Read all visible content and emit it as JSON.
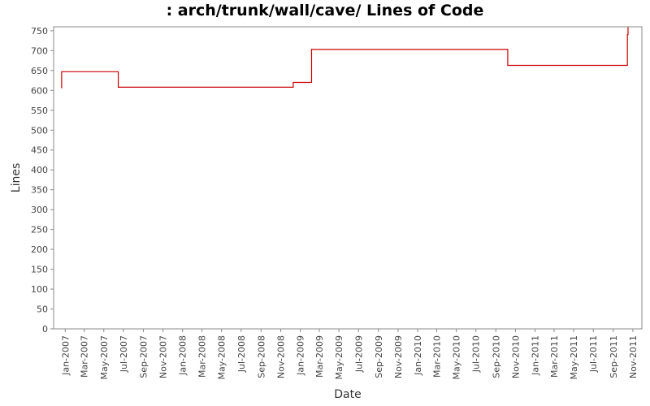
{
  "chart_data": {
    "type": "line",
    "title": ": arch/trunk/wall/cave/ Lines of Code",
    "xlabel": "Date",
    "ylabel": "Lines",
    "ylim": [
      0,
      760
    ],
    "xlim": [
      "2006-11-26",
      "2011-11-29"
    ],
    "y_ticks": [
      0,
      50,
      100,
      150,
      200,
      250,
      300,
      350,
      400,
      450,
      500,
      550,
      600,
      650,
      700,
      750
    ],
    "x_ticks": [
      {
        "label": "Jan-2007",
        "date": "2007-01-01"
      },
      {
        "label": "Mar-2007",
        "date": "2007-03-01"
      },
      {
        "label": "May-2007",
        "date": "2007-05-01"
      },
      {
        "label": "Jul-2007",
        "date": "2007-07-01"
      },
      {
        "label": "Sep-2007",
        "date": "2007-09-01"
      },
      {
        "label": "Nov-2007",
        "date": "2007-11-01"
      },
      {
        "label": "Jan-2008",
        "date": "2008-01-01"
      },
      {
        "label": "Mar-2008",
        "date": "2008-03-01"
      },
      {
        "label": "May-2008",
        "date": "2008-05-01"
      },
      {
        "label": "Jul-2008",
        "date": "2008-07-01"
      },
      {
        "label": "Sep-2008",
        "date": "2008-09-01"
      },
      {
        "label": "Nov-2008",
        "date": "2008-11-01"
      },
      {
        "label": "Jan-2009",
        "date": "2009-01-01"
      },
      {
        "label": "Mar-2009",
        "date": "2009-03-01"
      },
      {
        "label": "May-2009",
        "date": "2009-05-01"
      },
      {
        "label": "Jul-2009",
        "date": "2009-07-01"
      },
      {
        "label": "Sep-2009",
        "date": "2009-09-01"
      },
      {
        "label": "Nov-2009",
        "date": "2009-11-01"
      },
      {
        "label": "Jan-2010",
        "date": "2010-01-01"
      },
      {
        "label": "Mar-2010",
        "date": "2010-03-01"
      },
      {
        "label": "May-2010",
        "date": "2010-05-01"
      },
      {
        "label": "Jul-2010",
        "date": "2010-07-01"
      },
      {
        "label": "Sep-2010",
        "date": "2010-09-01"
      },
      {
        "label": "Nov-2010",
        "date": "2010-11-01"
      },
      {
        "label": "Jan-2011",
        "date": "2011-01-01"
      },
      {
        "label": "Mar-2011",
        "date": "2011-03-01"
      },
      {
        "label": "May-2011",
        "date": "2011-05-01"
      },
      {
        "label": "Jul-2011",
        "date": "2011-07-01"
      },
      {
        "label": "Sep-2011",
        "date": "2011-09-01"
      },
      {
        "label": "Nov-2011",
        "date": "2011-11-01"
      }
    ],
    "series": [
      {
        "color": "#cc0000",
        "step": true,
        "points": [
          {
            "x": "2006-12-20",
            "y": 607
          },
          {
            "x": "2006-12-21",
            "y": 647
          },
          {
            "x": "2007-06-15",
            "y": 608
          },
          {
            "x": "2008-12-10",
            "y": 620
          },
          {
            "x": "2009-02-05",
            "y": 703
          },
          {
            "x": "2010-10-08",
            "y": 663
          },
          {
            "x": "2011-10-15",
            "y": 740
          },
          {
            "x": "2011-10-17",
            "y": 758
          }
        ]
      }
    ],
    "grid": false,
    "background": "#ffffff",
    "axis_color": "#888888"
  }
}
